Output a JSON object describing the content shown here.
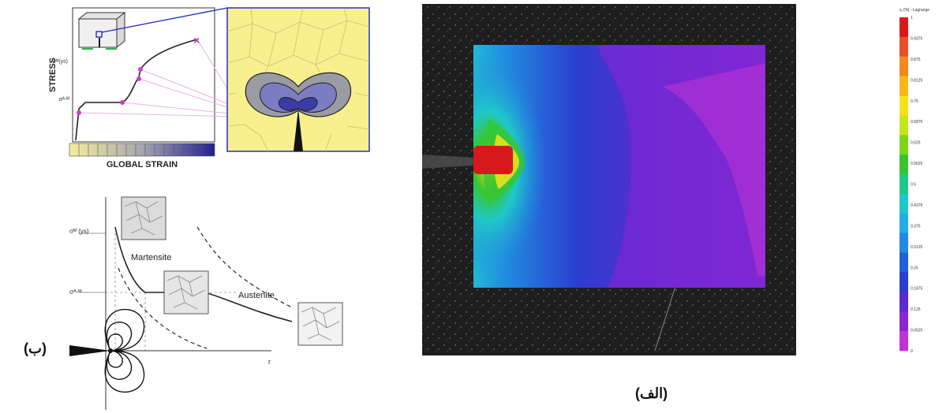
{
  "captions": {
    "left": "(ب)",
    "right": "(الف)"
  },
  "fig_b_top": {
    "y_axis_label": "STRESS",
    "x_axis_label": "GLOBAL STRAIN",
    "sigma_ys_label": "σᴹ(ys)",
    "sigma_am_label": "σᴬ-ᴹ"
  },
  "fig_b_bottom": {
    "sigma_ys_label": "σᴹ (ys)",
    "sigma_am_label": "σᴬ-ᴹ",
    "martensite_label": "Martensite",
    "austenite_label": "Austenite",
    "r_label": "r"
  },
  "colorbar": {
    "title": "εᵧ [%] - Lagrange",
    "ticks": [
      "1",
      "0.9375",
      "0.875",
      "0.8125",
      "0.75",
      "0.6875",
      "0.625",
      "0.5625",
      "0.5",
      "0.4375",
      "0.375",
      "0.3125",
      "0.25",
      "0.1875",
      "0.125",
      "0.0625",
      "0"
    ],
    "colors": [
      "#d7191c",
      "#e8502a",
      "#f08a1e",
      "#f5b818",
      "#f3e21b",
      "#c7e51c",
      "#7fd51e",
      "#36c531",
      "#20c78b",
      "#1fc8c8",
      "#23aee3",
      "#2288e0",
      "#2160d8",
      "#2a3fcf",
      "#5a2bd0",
      "#8b26d4",
      "#c034d6"
    ]
  }
}
